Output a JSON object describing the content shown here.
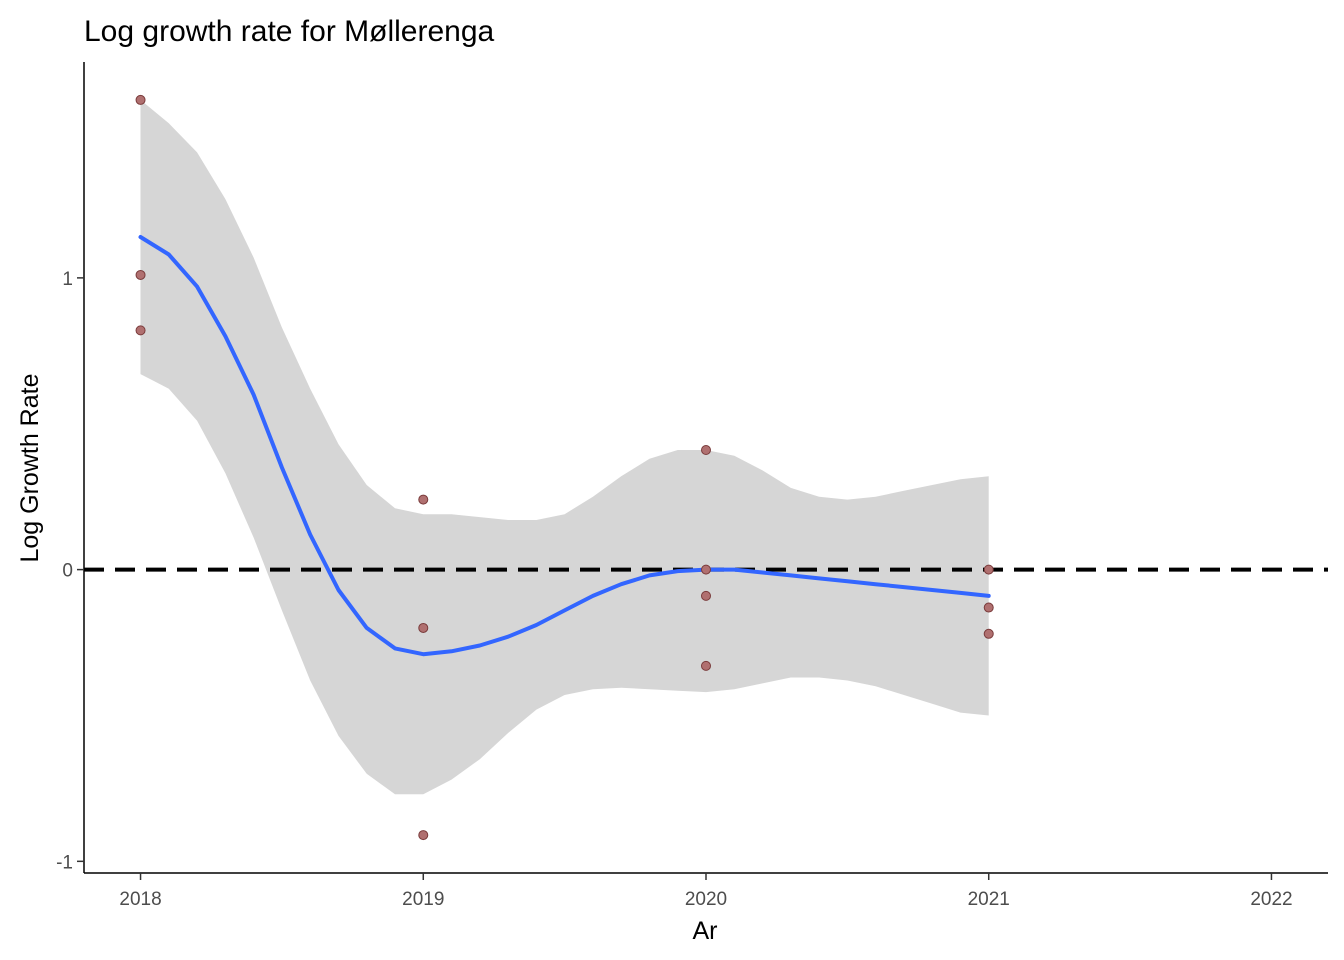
{
  "chart_data": {
    "type": "scatter",
    "title": "Log growth rate for Møllerenga",
    "xlabel": "Ar",
    "ylabel": "Log Growth Rate",
    "xlim": [
      2017.8,
      2022.2
    ],
    "ylim": [
      -1.04,
      1.74
    ],
    "x_ticks": [
      2018,
      2019,
      2020,
      2021,
      2022
    ],
    "y_ticks": [
      -1,
      0,
      1
    ],
    "grid": false,
    "reference_line": {
      "y": 0,
      "style": "dashed",
      "color": "#000000"
    },
    "points": {
      "color": "#b07070",
      "x": [
        2018,
        2018,
        2018,
        2019,
        2019,
        2019,
        2020,
        2020,
        2020,
        2020,
        2021,
        2021,
        2021
      ],
      "y": [
        1.61,
        1.01,
        0.82,
        0.24,
        -0.2,
        -0.91,
        0.41,
        0.0,
        -0.09,
        -0.33,
        0.0,
        -0.13,
        -0.22
      ]
    },
    "smooth": {
      "color": "#3366ff",
      "band_color": "#d6d6d6",
      "x": [
        2018.0,
        2018.1,
        2018.2,
        2018.3,
        2018.4,
        2018.5,
        2018.6,
        2018.7,
        2018.8,
        2018.9,
        2019.0,
        2019.1,
        2019.2,
        2019.3,
        2019.4,
        2019.5,
        2019.6,
        2019.7,
        2019.8,
        2019.9,
        2020.0,
        2020.1,
        2020.2,
        2020.3,
        2020.4,
        2020.5,
        2020.6,
        2020.7,
        2020.8,
        2020.9,
        2021.0
      ],
      "y": [
        1.14,
        1.08,
        0.97,
        0.8,
        0.6,
        0.35,
        0.12,
        -0.07,
        -0.2,
        -0.27,
        -0.29,
        -0.28,
        -0.26,
        -0.23,
        -0.19,
        -0.14,
        -0.09,
        -0.05,
        -0.02,
        -0.005,
        0.0,
        0.0,
        -0.01,
        -0.02,
        -0.03,
        -0.04,
        -0.05,
        -0.06,
        -0.07,
        -0.08,
        -0.09
      ],
      "ymin": [
        0.67,
        0.62,
        0.51,
        0.33,
        0.11,
        -0.14,
        -0.38,
        -0.57,
        -0.7,
        -0.77,
        -0.77,
        -0.72,
        -0.65,
        -0.56,
        -0.48,
        -0.43,
        -0.41,
        -0.405,
        -0.41,
        -0.415,
        -0.42,
        -0.41,
        -0.39,
        -0.37,
        -0.37,
        -0.38,
        -0.4,
        -0.43,
        -0.46,
        -0.49,
        -0.5
      ],
      "ymax": [
        1.61,
        1.53,
        1.43,
        1.27,
        1.07,
        0.83,
        0.62,
        0.43,
        0.29,
        0.21,
        0.19,
        0.19,
        0.18,
        0.17,
        0.17,
        0.19,
        0.25,
        0.32,
        0.38,
        0.41,
        0.41,
        0.39,
        0.34,
        0.28,
        0.25,
        0.24,
        0.25,
        0.27,
        0.29,
        0.31,
        0.32
      ]
    }
  }
}
